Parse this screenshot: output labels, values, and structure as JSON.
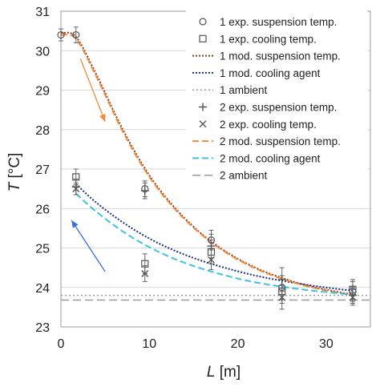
{
  "chart_data": {
    "type": "scatter",
    "title": "",
    "xlabel": "L [m]",
    "ylabel": "T [°C]",
    "xlabel_main": "L",
    "xlabel_unit": " [m]",
    "ylabel_main": "T",
    "ylabel_unit": " [°C]",
    "xlim": [
      0,
      35
    ],
    "ylim": [
      23,
      31
    ],
    "xticks": [
      "0",
      "10",
      "20",
      "30"
    ],
    "yticks": [
      "23",
      "24",
      "25",
      "26",
      "27",
      "28",
      "29",
      "30",
      "31"
    ],
    "grid": "horizontal",
    "legend_position": "top-right",
    "series": [
      {
        "name": "1 exp. suspension temp.",
        "kind": "marker",
        "marker": "circle",
        "color": "#555555",
        "x": [
          0,
          1.7,
          9.5,
          17,
          25,
          33
        ],
        "y": [
          30.4,
          30.4,
          26.5,
          25.2,
          24.0,
          23.9
        ],
        "err": [
          0.15,
          0.2,
          0.2,
          0.25,
          0.3,
          0.25
        ]
      },
      {
        "name": "1 exp. cooling temp.",
        "kind": "marker",
        "marker": "square",
        "color": "#555555",
        "x": [
          1.7,
          9.5,
          17,
          25,
          33
        ],
        "y": [
          26.8,
          24.6,
          24.9,
          23.9,
          23.95
        ],
        "err": [
          0.2,
          0.25,
          0.3,
          0.3,
          0.25
        ]
      },
      {
        "name": "1 mod. suspension temp.",
        "kind": "line",
        "dash": "2,2",
        "width": 2,
        "color": "#8b3a1a",
        "x": [
          0,
          1.7,
          4,
          7,
          10,
          13,
          16,
          19,
          22,
          25,
          28,
          31,
          33
        ],
        "y": [
          30.45,
          30.35,
          29.4,
          28.0,
          26.84,
          25.99,
          25.34,
          24.86,
          24.5,
          24.24,
          24.04,
          23.9,
          23.82
        ]
      },
      {
        "name": "1 mod. cooling agent",
        "kind": "line",
        "dash": "2,2",
        "width": 2,
        "color": "#1f2f80",
        "x": [
          1.7,
          4,
          7,
          10,
          13,
          16,
          19,
          22,
          25,
          28,
          31,
          33
        ],
        "y": [
          26.62,
          26.15,
          25.65,
          25.24,
          24.92,
          24.67,
          24.47,
          24.3,
          24.17,
          24.06,
          23.97,
          23.92
        ]
      },
      {
        "name": "1 ambient",
        "kind": "line",
        "dash": "2,3",
        "width": 1.5,
        "color": "#999999",
        "x": [
          0,
          35
        ],
        "y": [
          23.8,
          23.8
        ]
      },
      {
        "name": "2 exp. suspension temp.",
        "kind": "marker",
        "marker": "plus",
        "color": "#555555",
        "x": [
          1.7,
          9.5,
          17,
          25,
          33
        ],
        "y": [
          26.55,
          26.45,
          25.05,
          24.2,
          23.8
        ],
        "err": [
          0.2,
          0.2,
          0.3,
          0.3,
          0.2
        ]
      },
      {
        "name": "2 exp. cooling temp.",
        "kind": "marker",
        "marker": "x",
        "color": "#555555",
        "x": [
          1.7,
          9.5,
          17,
          25,
          33
        ],
        "y": [
          26.5,
          24.35,
          24.7,
          23.75,
          23.75
        ],
        "err": [
          0.15,
          0.2,
          0.25,
          0.3,
          0.2
        ]
      },
      {
        "name": "2 mod. suspension temp.",
        "kind": "line",
        "dash": "8,4",
        "width": 2,
        "color": "#f08a3c",
        "x": [
          0,
          1.7,
          4,
          7,
          10,
          13,
          16,
          19,
          22,
          25,
          28,
          31,
          33
        ],
        "y": [
          30.4,
          30.3,
          29.35,
          27.95,
          26.8,
          25.96,
          25.32,
          24.84,
          24.48,
          24.22,
          24.02,
          23.88,
          23.8
        ]
      },
      {
        "name": "2 mod. cooling agent",
        "kind": "line",
        "dash": "8,4",
        "width": 2,
        "color": "#3fc2df",
        "x": [
          1.7,
          4,
          7,
          10,
          13,
          16,
          19,
          22,
          25,
          28,
          31,
          33
        ],
        "y": [
          26.38,
          25.92,
          25.42,
          25.02,
          24.71,
          24.47,
          24.28,
          24.13,
          24.02,
          23.93,
          23.86,
          23.82
        ]
      },
      {
        "name": "2 ambient",
        "kind": "line",
        "dash": "10,5",
        "width": 1.5,
        "color": "#9a9a9a",
        "x": [
          0,
          35
        ],
        "y": [
          23.68,
          23.68
        ]
      }
    ],
    "arrows": [
      {
        "color": "#f08a3c",
        "from": [
          2.2,
          29.8
        ],
        "to": [
          5.0,
          28.2
        ]
      },
      {
        "color": "#3a6fd6",
        "from": [
          5.0,
          24.4
        ],
        "to": [
          1.2,
          25.7
        ]
      }
    ]
  }
}
